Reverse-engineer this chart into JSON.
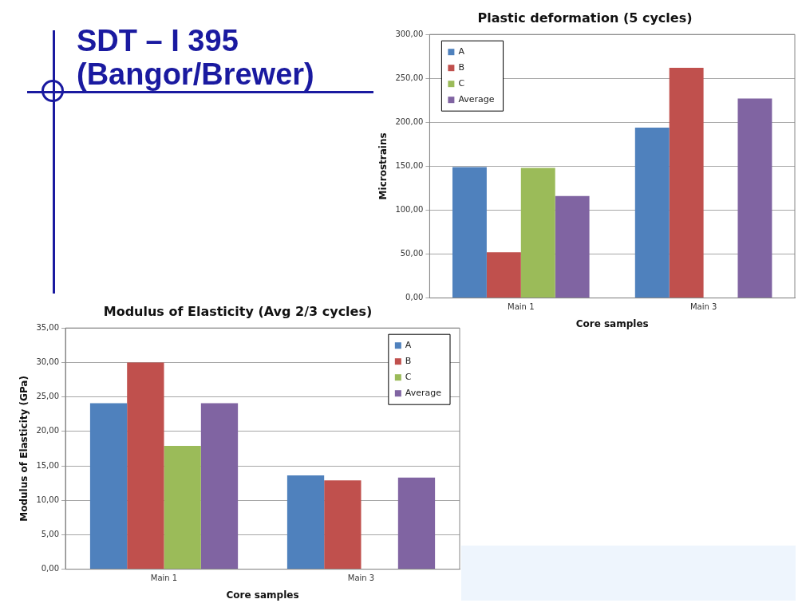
{
  "chart_data": [
    {
      "type": "bar",
      "title": "Plastic deformation (5 cycles)",
      "xlabel": "Core samples",
      "ylabel": "Microstrains",
      "annotations": [
        "SDT – I 395\n(Bangor/Brewer)"
      ],
      "categories": [
        "Main 1",
        "Main 3"
      ],
      "series": [
        {
          "name": "A",
          "color": "#4f81bd",
          "values": [
            149,
            194
          ]
        },
        {
          "name": "B",
          "color": "#c0504d",
          "values": [
            52,
            262
          ]
        },
        {
          "name": "C",
          "color": "#9bbb59",
          "values": [
            148,
            null
          ]
        },
        {
          "name": "Average",
          "color": "#8064a2",
          "values": [
            116,
            227
          ]
        }
      ],
      "ylim": [
        0,
        300
      ],
      "yticks": [
        {
          "value": 0,
          "label": "0,00"
        },
        {
          "value": 50,
          "label": "50,00"
        },
        {
          "value": 100,
          "label": "100,00"
        },
        {
          "value": 150,
          "label": "150,00"
        },
        {
          "value": 200,
          "label": "200,00"
        },
        {
          "value": 250,
          "label": "250,00"
        },
        {
          "value": 300,
          "label": "300,00"
        }
      ],
      "grid": "y",
      "legend": "top left"
    },
    {
      "type": "bar",
      "title": "Modulus of Elasticity (Avg 2/3 cycles)",
      "xlabel": "Core samples",
      "ylabel": "Modulus of Elasticity (GPa)",
      "categories": [
        "Main 1",
        "Main 3"
      ],
      "series": [
        {
          "name": "A",
          "color": "#4f81bd",
          "values": [
            24.1,
            13.6
          ]
        },
        {
          "name": "B",
          "color": "#c0504d",
          "values": [
            30.0,
            12.9
          ]
        },
        {
          "name": "C",
          "color": "#9bbb59",
          "values": [
            17.9,
            null
          ]
        },
        {
          "name": "Average",
          "color": "#8064a2",
          "values": [
            24.1,
            13.3
          ]
        }
      ],
      "ylim": [
        0,
        35
      ],
      "yticks": [
        {
          "value": 0,
          "label": "0,00"
        },
        {
          "value": 5,
          "label": "5,00"
        },
        {
          "value": 10,
          "label": "10,00"
        },
        {
          "value": 15,
          "label": "15,00"
        },
        {
          "value": 20,
          "label": "20,00"
        },
        {
          "value": 25,
          "label": "25,00"
        },
        {
          "value": 30,
          "label": "30,00"
        },
        {
          "value": 35,
          "label": "35,00"
        }
      ],
      "grid": "y",
      "legend": "top right"
    }
  ]
}
